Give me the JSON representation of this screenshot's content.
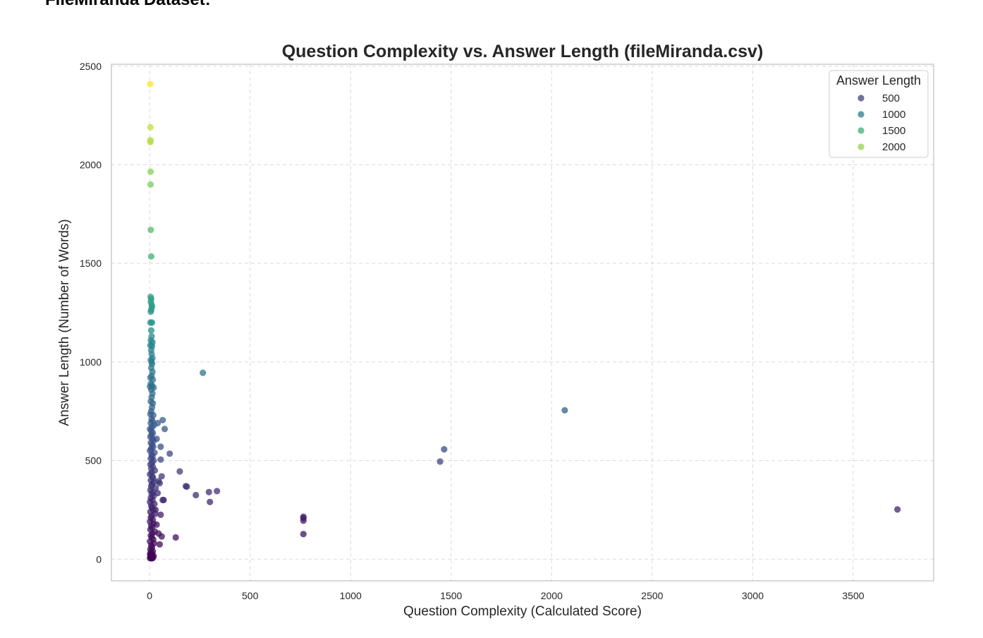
{
  "page": {
    "heading": "FileMiranda Dataset:"
  },
  "chart_data": {
    "type": "scatter",
    "title": "Question Complexity vs. Answer Length (fileMiranda.csv)",
    "xlabel": "Question Complexity (Calculated Score)",
    "ylabel": "Answer Length (Number of Words)",
    "xlim": [
      -190,
      3900
    ],
    "ylim": [
      -110,
      2510
    ],
    "xticks": [
      0,
      500,
      1000,
      1500,
      2000,
      2500,
      3000,
      3500
    ],
    "yticks": [
      0,
      500,
      1000,
      1500,
      2000,
      2500
    ],
    "grid": true,
    "colormap": "viridis",
    "color_range": [
      0,
      2400
    ],
    "colormap_stops": [
      "#440154",
      "#3b528b",
      "#21918c",
      "#5ec962",
      "#fde725"
    ],
    "legend": {
      "title": "Answer Length",
      "placement": "top-right",
      "entries": [
        {
          "label": "500",
          "value": 500
        },
        {
          "label": "1000",
          "value": 1000
        },
        {
          "label": "1500",
          "value": 1500
        },
        {
          "label": "2000",
          "value": 2000
        }
      ]
    },
    "points": [
      [
        3,
        2410
      ],
      [
        4,
        2190
      ],
      [
        4,
        2125
      ],
      [
        4,
        2115
      ],
      [
        5,
        1965
      ],
      [
        5,
        1900
      ],
      [
        6,
        1670
      ],
      [
        8,
        1535
      ],
      [
        5,
        1330
      ],
      [
        8,
        1320
      ],
      [
        6,
        1305
      ],
      [
        10,
        1290
      ],
      [
        12,
        1280
      ],
      [
        8,
        1265
      ],
      [
        6,
        1255
      ],
      [
        4,
        1200
      ],
      [
        12,
        1200
      ],
      [
        8,
        1160
      ],
      [
        10,
        1130
      ],
      [
        6,
        1110
      ],
      [
        14,
        1100
      ],
      [
        4,
        1085
      ],
      [
        12,
        1080
      ],
      [
        8,
        1060
      ],
      [
        10,
        1040
      ],
      [
        14,
        1020
      ],
      [
        6,
        1010
      ],
      [
        10,
        1000
      ],
      [
        12,
        990
      ],
      [
        8,
        970
      ],
      [
        14,
        950
      ],
      [
        4,
        920
      ],
      [
        10,
        930
      ],
      [
        16,
        910
      ],
      [
        6,
        890
      ],
      [
        12,
        880
      ],
      [
        2,
        875
      ],
      [
        20,
        870
      ],
      [
        8,
        860
      ],
      [
        14,
        840
      ],
      [
        10,
        820
      ],
      [
        6,
        800
      ],
      [
        16,
        790
      ],
      [
        12,
        770
      ],
      [
        8,
        750
      ],
      [
        4,
        735
      ],
      [
        18,
        730
      ],
      [
        10,
        710
      ],
      [
        14,
        700
      ],
      [
        6,
        690
      ],
      [
        22,
        680
      ],
      [
        12,
        670
      ],
      [
        2,
        660
      ],
      [
        8,
        650
      ],
      [
        16,
        640
      ],
      [
        10,
        630
      ],
      [
        4,
        620
      ],
      [
        14,
        610
      ],
      [
        20,
        600
      ],
      [
        6,
        590
      ],
      [
        12,
        580
      ],
      [
        18,
        570
      ],
      [
        8,
        560
      ],
      [
        2,
        550
      ],
      [
        24,
        540
      ],
      [
        10,
        530
      ],
      [
        14,
        520
      ],
      [
        6,
        510
      ],
      [
        20,
        500
      ],
      [
        12,
        490
      ],
      [
        4,
        480
      ],
      [
        16,
        470
      ],
      [
        8,
        460
      ],
      [
        26,
        450
      ],
      [
        10,
        440
      ],
      [
        2,
        430
      ],
      [
        14,
        420
      ],
      [
        18,
        410
      ],
      [
        6,
        400
      ],
      [
        22,
        390
      ],
      [
        12,
        380
      ],
      [
        8,
        370
      ],
      [
        30,
        360
      ],
      [
        4,
        350
      ],
      [
        16,
        340
      ],
      [
        10,
        330
      ],
      [
        20,
        320
      ],
      [
        6,
        310
      ],
      [
        14,
        300
      ],
      [
        2,
        290
      ],
      [
        24,
        280
      ],
      [
        8,
        270
      ],
      [
        12,
        260
      ],
      [
        18,
        250
      ],
      [
        4,
        240
      ],
      [
        28,
        230
      ],
      [
        10,
        220
      ],
      [
        6,
        210
      ],
      [
        16,
        200
      ],
      [
        2,
        190
      ],
      [
        20,
        180
      ],
      [
        8,
        170
      ],
      [
        12,
        160
      ],
      [
        4,
        150
      ],
      [
        26,
        140
      ],
      [
        14,
        130
      ],
      [
        6,
        120
      ],
      [
        10,
        110
      ],
      [
        18,
        100
      ],
      [
        2,
        90
      ],
      [
        22,
        80
      ],
      [
        8,
        70
      ],
      [
        12,
        60
      ],
      [
        4,
        50
      ],
      [
        16,
        40
      ],
      [
        6,
        35
      ],
      [
        10,
        30
      ],
      [
        2,
        25
      ],
      [
        14,
        22
      ],
      [
        8,
        18
      ],
      [
        20,
        15
      ],
      [
        4,
        12
      ],
      [
        12,
        10
      ],
      [
        6,
        8
      ],
      [
        16,
        6
      ],
      [
        2,
        5
      ],
      [
        10,
        4
      ],
      [
        265,
        945
      ],
      [
        2065,
        755
      ],
      [
        1465,
        557
      ],
      [
        1445,
        495
      ],
      [
        3720,
        252
      ],
      [
        65,
        705
      ],
      [
        75,
        660
      ],
      [
        40,
        690
      ],
      [
        35,
        610
      ],
      [
        55,
        570
      ],
      [
        100,
        535
      ],
      [
        55,
        505
      ],
      [
        150,
        445
      ],
      [
        60,
        420
      ],
      [
        45,
        395
      ],
      [
        180,
        370
      ],
      [
        185,
        368
      ],
      [
        295,
        340
      ],
      [
        335,
        345
      ],
      [
        230,
        325
      ],
      [
        300,
        290
      ],
      [
        50,
        385
      ],
      [
        70,
        300
      ],
      [
        40,
        335
      ],
      [
        55,
        225
      ],
      [
        130,
        110
      ],
      [
        60,
        115
      ],
      [
        50,
        75
      ],
      [
        765,
        215
      ],
      [
        765,
        208
      ],
      [
        765,
        195
      ],
      [
        765,
        127
      ],
      [
        35,
        175
      ],
      [
        45,
        130
      ],
      [
        30,
        250
      ],
      [
        65,
        300
      ]
    ]
  }
}
